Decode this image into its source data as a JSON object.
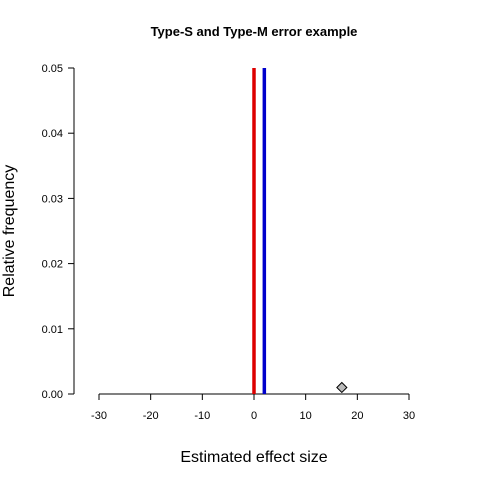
{
  "chart_data": {
    "type": "line",
    "title": "Type-S and Type-M error example",
    "xlabel": "Estimated effect size",
    "ylabel": "Relative frequency",
    "xlim": [
      -30,
      30
    ],
    "ylim": [
      0,
      0.05
    ],
    "x_ticks": [
      "-30",
      "-20",
      "-10",
      "0",
      "10",
      "20",
      "30"
    ],
    "y_ticks": [
      "0.00",
      "0.01",
      "0.02",
      "0.03",
      "0.04",
      "0.05"
    ],
    "grid": false,
    "legend": "none",
    "vertical_lines": [
      {
        "x": 0,
        "y0": 0,
        "y1": 0.05,
        "color": "#dd0000"
      },
      {
        "x": 2,
        "y0": 0,
        "y1": 0.05,
        "color": "#0000cc"
      }
    ],
    "points": [
      {
        "x": 17,
        "y": 0.001,
        "shape": "diamond",
        "fill": "#bbbbbb",
        "stroke": "#000000"
      }
    ]
  }
}
